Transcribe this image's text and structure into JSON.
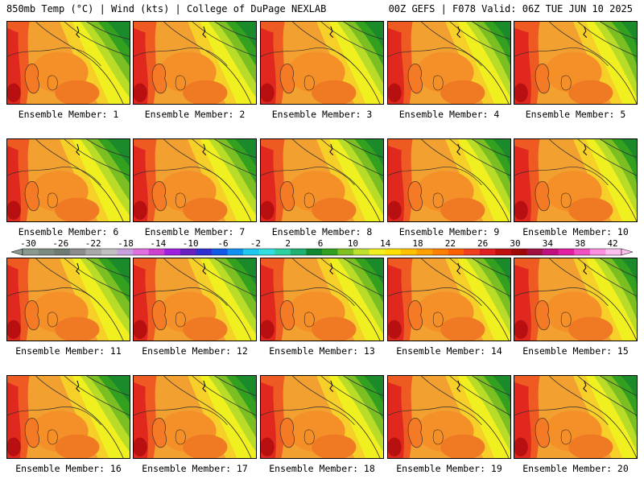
{
  "header": {
    "title": "850mb Temp (°C) | Wind (kts) | College of DuPage NEXLAB",
    "run_info": "00Z GEFS | F078 Valid: 06Z TUE JUN 10 2025"
  },
  "panels": [
    {
      "label": "Ensemble Member: 1"
    },
    {
      "label": "Ensemble Member: 2"
    },
    {
      "label": "Ensemble Member: 3"
    },
    {
      "label": "Ensemble Member: 4"
    },
    {
      "label": "Ensemble Member: 5"
    },
    {
      "label": "Ensemble Member: 6"
    },
    {
      "label": "Ensemble Member: 7"
    },
    {
      "label": "Ensemble Member: 8"
    },
    {
      "label": "Ensemble Member: 9"
    },
    {
      "label": "Ensemble Member: 10"
    },
    {
      "label": "Ensemble Member: 11"
    },
    {
      "label": "Ensemble Member: 12"
    },
    {
      "label": "Ensemble Member: 13"
    },
    {
      "label": "Ensemble Member: 14"
    },
    {
      "label": "Ensemble Member: 15"
    },
    {
      "label": "Ensemble Member: 16"
    },
    {
      "label": "Ensemble Member: 17"
    },
    {
      "label": "Ensemble Member: 18"
    },
    {
      "label": "Ensemble Member: 19"
    },
    {
      "label": "Ensemble Member: 20"
    }
  ],
  "colorbar": {
    "tick_labels": [
      "-30",
      "-26",
      "-22",
      "-18",
      "-14",
      "-10",
      "-6",
      "-2",
      "2",
      "6",
      "10",
      "14",
      "18",
      "22",
      "26",
      "30",
      "34",
      "38",
      "42"
    ],
    "colors": [
      "#8a9a8e",
      "#7d8a80",
      "#6e7a72",
      "#8c8c8c",
      "#a8a8a8",
      "#c0c0c0",
      "#c8a0e0",
      "#e070e0",
      "#d040d0",
      "#a020e0",
      "#6a20c0",
      "#3030d0",
      "#1058e8",
      "#1090f0",
      "#20c8f0",
      "#30e0e0",
      "#30d0a0",
      "#20b070",
      "#108830",
      "#30a020",
      "#80c020",
      "#c0e030",
      "#f0f020",
      "#ffe000",
      "#ffc000",
      "#ffa000",
      "#ff8000",
      "#ff6000",
      "#f04020",
      "#e02020",
      "#c01010",
      "#a00808",
      "#a01040",
      "#c01080",
      "#e020a0",
      "#f050c0",
      "#ff90e0",
      "#ffc0f0"
    ]
  }
}
